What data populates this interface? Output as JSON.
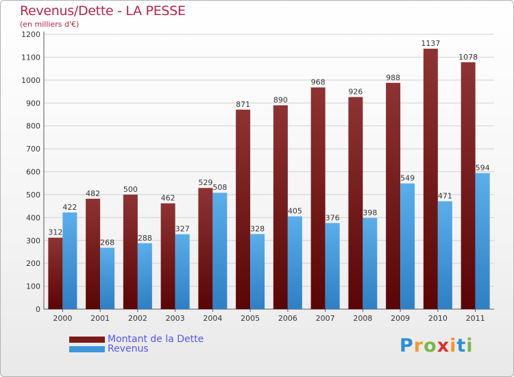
{
  "title": "Revenus/Dette - LA PESSE",
  "subtitle": "(en milliers d'€)",
  "colors": {
    "dette": "#7a1a1a",
    "revenus": "#3e96dc",
    "title": "#b1254a",
    "legend_text": "#5555ee"
  },
  "logo": {
    "letters": [
      "P",
      "r",
      "o",
      "x",
      "i",
      "t",
      "i"
    ],
    "colors": [
      "#2b8fd6",
      "#f29a2e",
      "#7ab648",
      "#d9342b",
      "#f29a2e",
      "#2b8fd6",
      "#7ab648"
    ]
  },
  "legend": [
    {
      "label": "Montant de la Dette",
      "series": "dette"
    },
    {
      "label": "Revenus",
      "series": "revenus"
    }
  ],
  "chart_data": {
    "type": "bar",
    "title": "Revenus/Dette - LA PESSE",
    "subtitle": "(en milliers d'€)",
    "categories": [
      "2000",
      "2001",
      "2002",
      "2003",
      "2004",
      "2005",
      "2006",
      "2007",
      "2008",
      "2009",
      "2010",
      "2011"
    ],
    "series": [
      {
        "name": "Montant de la Dette",
        "key": "dette",
        "values": [
          312,
          482,
          500,
          462,
          529,
          871,
          890,
          968,
          926,
          988,
          1137,
          1078
        ]
      },
      {
        "name": "Revenus",
        "key": "revenus",
        "values": [
          422,
          268,
          288,
          327,
          508,
          328,
          405,
          376,
          398,
          549,
          471,
          594
        ]
      }
    ],
    "ylim": [
      0,
      1200
    ],
    "yticks": [
      0,
      100,
      200,
      300,
      400,
      500,
      600,
      700,
      800,
      900,
      1000,
      1100,
      1200
    ],
    "grid": true,
    "legend_position": "bottom-left"
  }
}
